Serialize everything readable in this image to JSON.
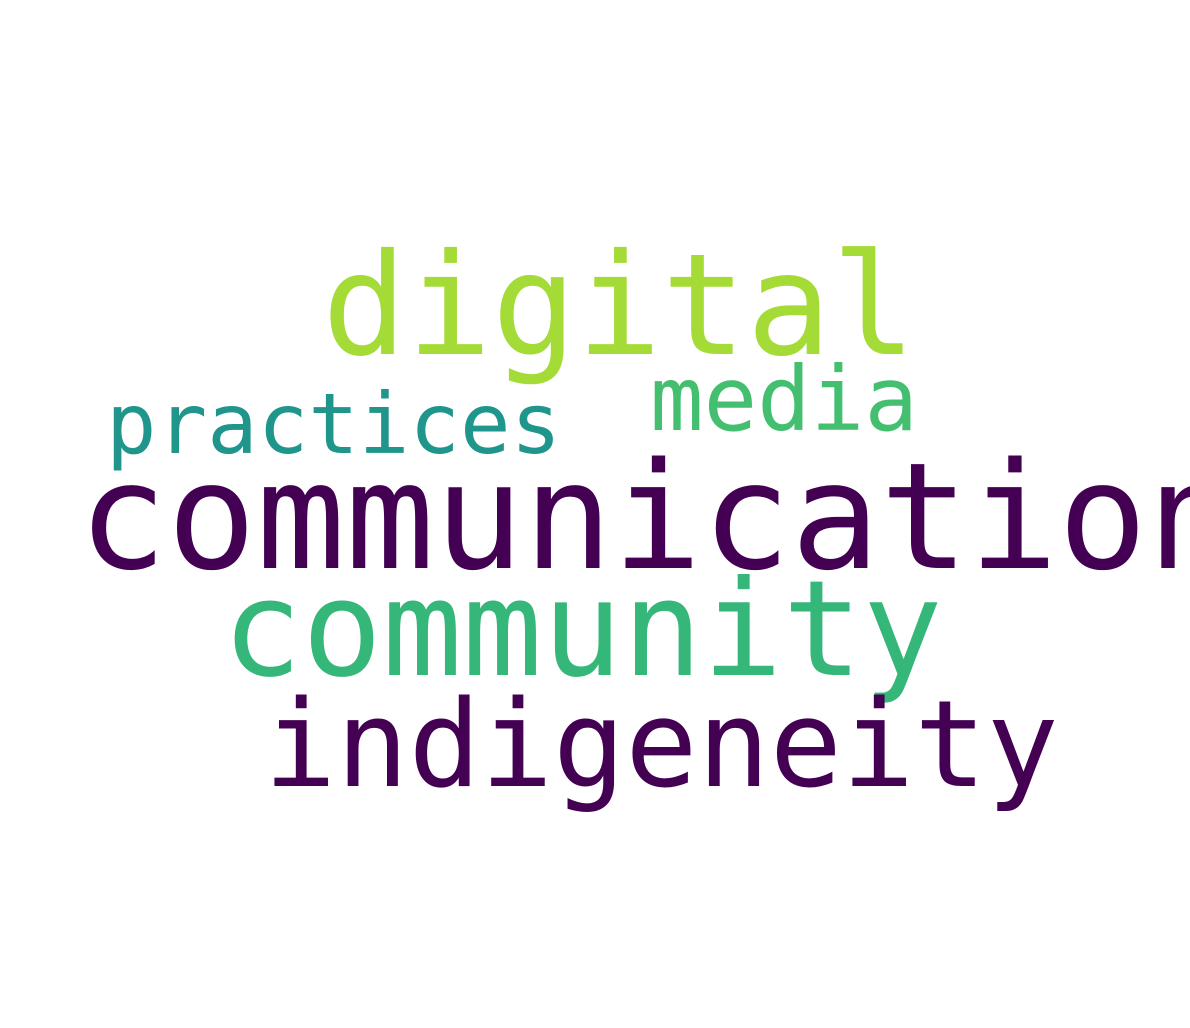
{
  "words": [
    {
      "key": "digital",
      "text": "digital",
      "color": "#a5db36"
    },
    {
      "key": "practices",
      "text": "practices",
      "color": "#1f958b"
    },
    {
      "key": "media",
      "text": "media",
      "color": "#44bf70"
    },
    {
      "key": "communication",
      "text": "communication",
      "color": "#440154"
    },
    {
      "key": "community",
      "text": "community",
      "color": "#35b779"
    },
    {
      "key": "indigeneity",
      "text": "indigeneity",
      "color": "#440154"
    }
  ]
}
